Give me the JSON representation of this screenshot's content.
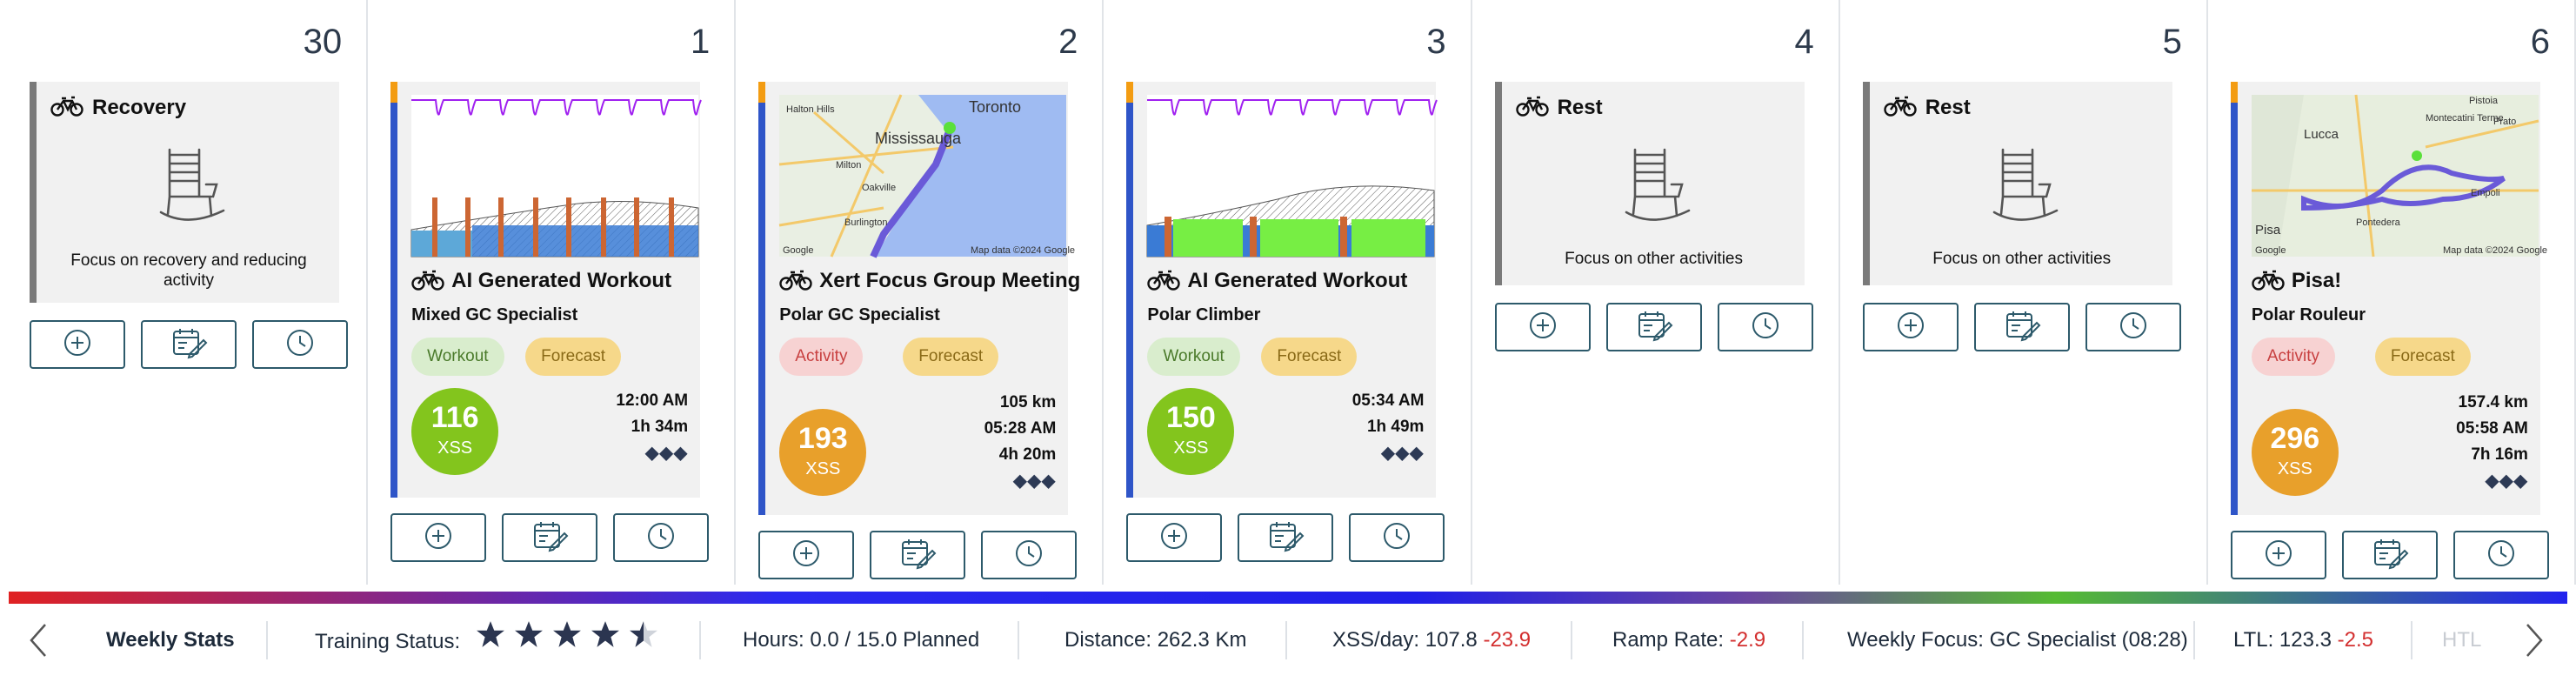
{
  "colors": {
    "accent_blue": "#2f55c8",
    "rest_gray": "#7a7a7a",
    "xss_green": "#83c51d",
    "xss_orange": "#e8a02b",
    "negative_red": "#d32f2f"
  },
  "days": [
    {
      "number": "30",
      "type": "rest",
      "title": "Recovery",
      "icon": "rocking-chair-icon",
      "focus": "Focus on recovery and reducing activity"
    },
    {
      "number": "1",
      "type": "workout",
      "title": "AI Generated Workout",
      "subtitle": "Mixed GC Specialist",
      "tags": [
        "Workout",
        "Forecast"
      ],
      "xss": "116",
      "xss_label": "XSS",
      "stats": [
        "12:00 AM",
        "1h 34m"
      ],
      "difficulty": "◆◆◆",
      "thumbnail": "workout-profile"
    },
    {
      "number": "2",
      "type": "activity",
      "title": "Xert Focus Group Meeting",
      "subtitle": "Polar GC Specialist",
      "tags": [
        "Activity",
        "Forecast"
      ],
      "xss": "193",
      "xss_label": "XSS",
      "stats": [
        "105 km",
        "05:28 AM",
        "4h 20m"
      ],
      "difficulty": "◆◆◆",
      "thumbnail": "map",
      "map_labels": [
        "Halton Hills",
        "Toronto",
        "Mississauga",
        "Milton",
        "Oakville",
        "Burlington",
        "Google",
        "Map data ©2024 Google"
      ]
    },
    {
      "number": "3",
      "type": "workout",
      "title": "AI Generated Workout",
      "subtitle": "Polar Climber",
      "tags": [
        "Workout",
        "Forecast"
      ],
      "xss": "150",
      "xss_label": "XSS",
      "stats": [
        "05:34 AM",
        "1h 49m"
      ],
      "difficulty": "◆◆◆",
      "thumbnail": "workout-profile"
    },
    {
      "number": "4",
      "type": "rest",
      "title": "Rest",
      "icon": "rocking-chair-icon",
      "focus": "Focus on other activities"
    },
    {
      "number": "5",
      "type": "rest",
      "title": "Rest",
      "icon": "rocking-chair-icon",
      "focus": "Focus on other activities"
    },
    {
      "number": "6",
      "type": "activity",
      "title": "Pisa!",
      "subtitle": "Polar Rouleur",
      "tags": [
        "Activity",
        "Forecast"
      ],
      "xss": "296",
      "xss_label": "XSS",
      "stats": [
        "157.4 km",
        "05:58 AM",
        "7h 16m"
      ],
      "difficulty": "◆◆◆",
      "thumbnail": "map",
      "map_labels": [
        "Pistoia",
        "Montecatini Terme",
        "Lucca",
        "Prato",
        "Pisa",
        "Empoli",
        "Pontedera",
        "Google",
        "Map data ©2024 Google"
      ]
    }
  ],
  "action_buttons": [
    "add-icon",
    "edit-plan-icon",
    "history-icon"
  ],
  "stats_bar": {
    "title": "Weekly Stats",
    "training_status_label": "Training Status:",
    "training_status_stars": 4.5,
    "hours": "Hours: 0.0 / 15.0 Planned",
    "distance": "Distance: 262.3 Km",
    "xss_day_label": "XSS/day: 107.8",
    "xss_day_delta": "-23.9",
    "ramp_label": "Ramp Rate:",
    "ramp_value": "-2.9",
    "focus": "Weekly Focus: GC Specialist (08:28)",
    "ltl_label": "LTL: 123.3",
    "ltl_delta": "-2.5",
    "htl_label": "HTL"
  }
}
